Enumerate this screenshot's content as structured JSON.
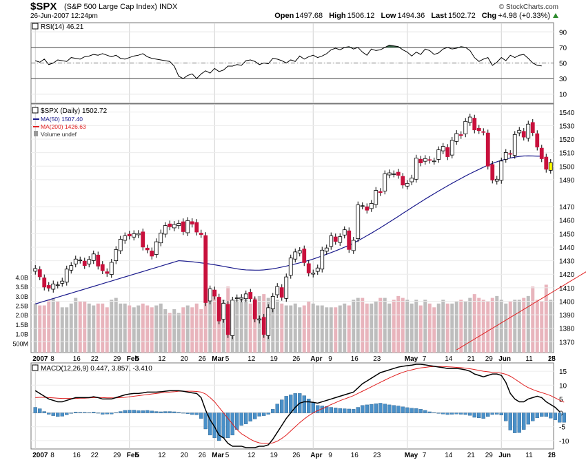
{
  "header": {
    "symbol": "$SPX",
    "name": "(S&P 500 Large Cap Index)",
    "exchange": "INDX",
    "datetime": "26-Jun-2007 12:24pm",
    "logo": "© StockCharts.com",
    "open_label": "Open",
    "open": "1497.68",
    "high_label": "High",
    "high": "1506.12",
    "low_label": "Low",
    "low": "1494.36",
    "last_label": "Last",
    "last": "1502.72",
    "chg_label": "Chg",
    "chg": "+4.98 (+0.33%)",
    "up_color": "#2e8b2e"
  },
  "colors": {
    "up_candle": "#ffffff",
    "down_candle": "#c8103c",
    "last_candle": "#ffff00",
    "ma50": "#1a1a8c",
    "ma200": "#e02020",
    "volume_up": "#bdbdbd",
    "volume_down": "#e8b4bc",
    "macd_line": "#000000",
    "signal_line": "#e02020",
    "histogram": "#4a90c8",
    "rsi_fill": "#2f5f3f"
  },
  "chart_data": [
    {
      "type": "line",
      "panel": "rsi",
      "label": "RSI(14) 46.21",
      "ylim": [
        0,
        100
      ],
      "y_ticks": [
        "90",
        "70",
        "50",
        "30",
        "10"
      ],
      "y_tick_values": [
        90,
        70,
        50,
        30,
        10
      ],
      "overbought": 70,
      "oversold": 30,
      "midline": 50,
      "values": [
        53,
        51,
        55,
        48,
        50,
        54,
        53,
        52,
        57,
        56,
        55,
        58,
        59,
        61,
        60,
        62,
        60,
        58,
        60,
        56,
        55,
        57,
        59,
        60,
        62,
        58,
        56,
        55,
        54,
        53,
        52,
        46,
        33,
        30,
        34,
        36,
        30,
        36,
        40,
        37,
        43,
        39,
        41,
        46,
        46,
        48,
        47,
        53,
        54,
        52,
        48,
        50,
        49,
        56,
        55,
        53,
        50,
        54,
        52,
        59,
        55,
        58,
        60,
        57,
        59,
        62,
        67,
        69,
        67,
        70,
        71,
        68,
        70,
        64,
        60,
        68,
        66,
        67,
        70,
        73,
        72,
        71,
        67,
        64,
        59,
        64,
        61,
        68,
        66,
        61,
        63,
        68,
        70,
        68,
        69,
        71,
        70,
        66,
        57,
        52,
        55,
        57,
        47,
        51,
        57,
        53,
        60,
        57,
        60,
        61,
        56,
        50,
        47,
        46.21
      ]
    },
    {
      "type": "candlestick",
      "panel": "price",
      "label": "$SPX (Daily) 1502.72",
      "legend": [
        "MA(50) 1507.40",
        "MA(200) 1426.63",
        "Volume undef"
      ],
      "ylim": [
        1362,
        1546
      ],
      "y_ticks": [
        "1540",
        "1530",
        "1520",
        "1510",
        "1500",
        "1490",
        "1470",
        "1460",
        "1450",
        "1440",
        "1430",
        "1420",
        "1410",
        "1400",
        "1390",
        "1380",
        "1370"
      ],
      "y_tick_values": [
        1540,
        1530,
        1520,
        1510,
        1500,
        1490,
        1470,
        1460,
        1450,
        1440,
        1430,
        1420,
        1410,
        1400,
        1390,
        1380,
        1370
      ],
      "close": [
        1424.2,
        1418.1,
        1410.5,
        1409.7,
        1412.8,
        1412.1,
        1414.9,
        1423.8,
        1426.4,
        1431.2,
        1430.5,
        1426.4,
        1430.9,
        1435.0,
        1426.0,
        1422.6,
        1420.6,
        1428.8,
        1438.2,
        1445.9,
        1448.4,
        1448.3,
        1450.0,
        1450.1,
        1440.1,
        1438.0,
        1433.4,
        1444.0,
        1450.5,
        1456.0,
        1455.1,
        1456.8,
        1457.6,
        1451.5,
        1459.7,
        1457.1,
        1451.2,
        1449.4,
        1399.0,
        1409.1,
        1403.8,
        1385.4,
        1398.5,
        1375.3,
        1400.8,
        1402.5,
        1402.7,
        1405.4,
        1401.9,
        1386.9,
        1386.9,
        1375.4,
        1395.2,
        1403.6,
        1410.9,
        1402.9,
        1418.0,
        1432.0,
        1436.5,
        1437.5,
        1428.6,
        1420.9,
        1420.9,
        1424.6,
        1437.8,
        1439.4,
        1448.4,
        1444.3,
        1447.8,
        1452.9,
        1438.3,
        1445.1,
        1471.3,
        1470.7,
        1467.4,
        1472.4,
        1482.0,
        1480.4,
        1494.3,
        1495.0,
        1494.3,
        1493.2,
        1486.0,
        1487.2,
        1491.1,
        1505.9,
        1502.4,
        1505.6,
        1504.4,
        1503.8,
        1512.1,
        1514.6,
        1507.0,
        1519.1,
        1524.1,
        1522.7,
        1533.1,
        1536.3,
        1526.8,
        1526.3,
        1525.3,
        1500.0,
        1489.7,
        1490.3,
        1503.8,
        1510.1,
        1508.8,
        1523.4,
        1526.5,
        1521.5,
        1531.1,
        1524.8,
        1514.1,
        1505.5,
        1497.7,
        1502.7
      ],
      "ma50": [
        1398,
        1399,
        1400,
        1401,
        1402,
        1403,
        1404,
        1405,
        1406,
        1407,
        1408,
        1409,
        1410,
        1411,
        1412,
        1413,
        1414,
        1415,
        1416,
        1417,
        1418,
        1419,
        1420,
        1421,
        1422,
        1423,
        1424,
        1425,
        1426,
        1427,
        1428,
        1429,
        1430,
        1429.8,
        1429.5,
        1429.2,
        1428.8,
        1428.4,
        1428,
        1427.5,
        1427,
        1426.4,
        1425.8,
        1425.2,
        1424.6,
        1424,
        1423.5,
        1423.2,
        1423.1,
        1423,
        1423,
        1423.2,
        1423.6,
        1424,
        1424.6,
        1425.3,
        1426,
        1426.8,
        1427.6,
        1428.4,
        1429.3,
        1430.2,
        1431.2,
        1432.4,
        1433.6,
        1434.8,
        1436,
        1437.3,
        1438.6,
        1440,
        1441.5,
        1443,
        1444.8,
        1446.6,
        1448.5,
        1450.4,
        1452.4,
        1454.4,
        1456.5,
        1458.6,
        1460.7,
        1462.8,
        1465,
        1467.1,
        1469.3,
        1471.4,
        1473.5,
        1475.6,
        1477.6,
        1479.6,
        1481.6,
        1483.5,
        1485.4,
        1487.3,
        1489.1,
        1490.9,
        1492.7,
        1494.4,
        1496,
        1497.6,
        1499.2,
        1500.7,
        1502,
        1503.2,
        1504.3,
        1505.2,
        1506,
        1506.7,
        1507.2,
        1507.5,
        1507.6,
        1507.5,
        1507.4,
        1507.4
      ]
    },
    {
      "type": "bar",
      "panel": "volume",
      "y_ticks": [
        "4.0B",
        "3.5B",
        "3.0B",
        "2.5B",
        "2.0B",
        "1.5B",
        "1.0B",
        "500M"
      ],
      "y_tick_values": [
        4.0,
        3.5,
        3.0,
        2.5,
        2.0,
        1.5,
        1.0,
        0.5
      ],
      "ylim": [
        0,
        4.2
      ],
      "values": [
        2.6,
        2.5,
        2.5,
        2.8,
        2.9,
        2.7,
        2.4,
        2.4,
        2.6,
        2.9,
        2.7,
        2.7,
        2.6,
        2.5,
        2.6,
        2.6,
        2.4,
        2.8,
        2.9,
        2.6,
        2.6,
        2.5,
        2.4,
        2.5,
        2.6,
        2.5,
        2.4,
        2.5,
        2.6,
        2.3,
        2.1,
        2.3,
        2.1,
        2.4,
        2.5,
        2.4,
        2.6,
        2.3,
        3.8,
        3.0,
        3.3,
        2.9,
        2.8,
        3.5,
        2.7,
        2.8,
        2.9,
        2.8,
        2.6,
        2.9,
        3.0,
        3.1,
        2.9,
        2.7,
        2.8,
        2.6,
        2.5,
        2.5,
        2.6,
        2.4,
        2.5,
        2.7,
        2.6,
        2.5,
        2.5,
        2.4,
        2.4,
        2.4,
        2.5,
        2.6,
        2.5,
        2.8,
        2.9,
        2.9,
        2.6,
        2.6,
        2.7,
        2.9,
        2.9,
        2.6,
        2.8,
        3.0,
        2.9,
        2.8,
        2.6,
        2.8,
        2.5,
        2.8,
        2.6,
        2.4,
        2.6,
        2.8,
        2.6,
        2.6,
        2.7,
        2.8,
        2.7,
        2.9,
        3.1,
        2.9,
        2.8,
        2.7,
        2.9,
        3.0,
        2.8,
        2.6,
        2.7,
        2.8,
        2.8,
        2.9,
        3.0,
        3.5,
        2.8,
        2.7,
        3.6,
        2.8
      ]
    },
    {
      "type": "line",
      "panel": "price-overlay",
      "label": "MA(200) 1426.63",
      "values_from": 94,
      "values": [
        1364,
        1366,
        1368,
        1370,
        1372,
        1374,
        1376,
        1378,
        1380,
        1382,
        1384,
        1386,
        1388,
        1390,
        1392,
        1394,
        1396,
        1398,
        1400,
        1402,
        1404,
        1406,
        1408,
        1410,
        1412,
        1414,
        1416,
        1418,
        1420,
        1422,
        1424,
        1426,
        1426.63
      ]
    },
    {
      "type": "line",
      "panel": "macd",
      "label": "MACD(12,26,9) 0.447, 3.857, -3.410",
      "ylim": [
        -13,
        18
      ],
      "y_ticks": [
        "15",
        "10",
        "5",
        "0",
        "-5",
        "-10"
      ],
      "y_tick_values": [
        15,
        10,
        5,
        0,
        -5,
        -10
      ],
      "macd": [
        8,
        7,
        6,
        5,
        4.5,
        4,
        4,
        4.5,
        5,
        5.5,
        5.5,
        5.5,
        5.5,
        5.8,
        5.5,
        5,
        5,
        5,
        5.5,
        6,
        6.5,
        6.8,
        7,
        7,
        7.2,
        7.5,
        7.5,
        7.5,
        7.6,
        7.8,
        8,
        8,
        8,
        7.8,
        7.5,
        7.2,
        7,
        5.5,
        1,
        -2.5,
        -5,
        -8,
        -9,
        -11,
        -12,
        -12,
        -12,
        -12.5,
        -12.5,
        -12.5,
        -12,
        -12,
        -11.5,
        -9.5,
        -7,
        -4.5,
        -2,
        0,
        2,
        3.5,
        4,
        4,
        3.8,
        3.5,
        4,
        4.5,
        5,
        5.5,
        6,
        6.5,
        7,
        7.5,
        9,
        10.5,
        11.5,
        12.5,
        13.5,
        14.5,
        15,
        15.5,
        16,
        16.5,
        16.8,
        17,
        17.2,
        17.5,
        17.5,
        17.3,
        17,
        16.8,
        16.5,
        16.3,
        16,
        16,
        16,
        15.8,
        15.5,
        15,
        14,
        13.5,
        13,
        13.5,
        14,
        14,
        13.5,
        11,
        7,
        5,
        4,
        4,
        5,
        5.5,
        6,
        5.5,
        4,
        3,
        2,
        0.447
      ],
      "signal": [
        5.5,
        5.6,
        5.6,
        5.5,
        5.4,
        5.3,
        5.2,
        5.2,
        5.2,
        5.2,
        5.3,
        5.3,
        5.4,
        5.5,
        5.5,
        5.5,
        5.4,
        5.4,
        5.4,
        5.5,
        5.6,
        5.8,
        6,
        6.2,
        6.4,
        6.6,
        6.8,
        7,
        7.2,
        7.3,
        7.5,
        7.6,
        7.8,
        7.8,
        7.8,
        7.8,
        7.7,
        7.5,
        6.8,
        5.5,
        4,
        2,
        0,
        -2,
        -4,
        -6,
        -7.5,
        -8.5,
        -9.5,
        -10.3,
        -10.8,
        -11,
        -11,
        -10.8,
        -10.2,
        -9.2,
        -8,
        -6.5,
        -5,
        -3.5,
        -2.2,
        -1,
        0,
        0.8,
        1.5,
        2.2,
        3,
        3.7,
        4.4,
        5,
        5.6,
        6.2,
        7,
        7.8,
        8.6,
        9.4,
        10.2,
        11,
        11.8,
        12.6,
        13.3,
        14,
        14.6,
        15.1,
        15.5,
        15.9,
        16.2,
        16.4,
        16.6,
        16.7,
        16.7,
        16.7,
        16.6,
        16.5,
        16.4,
        16.3,
        16.1,
        15.9,
        15.6,
        15.3,
        15,
        14.8,
        14.6,
        14.5,
        14.3,
        13.9,
        13.2,
        12.2,
        11.1,
        10,
        9.1,
        8.4,
        7.8,
        7.3,
        6.8,
        6.2,
        5.4,
        4.6,
        3.857
      ],
      "histogram": [
        2,
        1.5,
        0.5,
        -0.5,
        -1,
        -1.3,
        -1.2,
        -0.7,
        -0.2,
        0.3,
        0.2,
        0.2,
        0.1,
        0.3,
        0,
        -0.5,
        -0.4,
        -0.4,
        0.1,
        0.5,
        0.9,
        1,
        1,
        0.8,
        0.8,
        0.9,
        0.7,
        0.5,
        0.4,
        0.5,
        0.5,
        0.4,
        0.2,
        0,
        -0.3,
        -0.6,
        -0.7,
        -2,
        -5.8,
        -8,
        -9,
        -10,
        -9,
        -9,
        -8,
        -6,
        -4.5,
        -4,
        -3,
        -2.2,
        -1.2,
        -1,
        -0.5,
        1.3,
        3.2,
        4.7,
        6,
        6.5,
        7,
        7,
        6.2,
        5,
        3.8,
        2.7,
        2.5,
        2.3,
        2,
        1.8,
        1.6,
        1.5,
        1.4,
        1.3,
        2,
        2.7,
        2.9,
        3.1,
        3.3,
        3.5,
        3.2,
        2.9,
        2.7,
        2.5,
        2.2,
        1.9,
        1.7,
        1.6,
        1.3,
        0.9,
        0.4,
        0.1,
        -0.2,
        -0.4,
        -0.6,
        -0.5,
        -0.4,
        -0.5,
        -0.6,
        -0.9,
        -1.6,
        -1.8,
        -2,
        -1.3,
        -0.6,
        -0.5,
        -0.8,
        -2.9,
        -6.2,
        -7.2,
        -7.1,
        -6,
        -4.1,
        -2.9,
        -1.8,
        -1.3,
        -1.3,
        -1.9,
        -2.5,
        -3.4,
        -3.41
      ]
    }
  ],
  "x_axis": {
    "labels": [
      "2007",
      "8",
      "16",
      "22",
      "29",
      "Feb",
      "5",
      "12",
      "20",
      "26",
      "Mar",
      "5",
      "12",
      "19",
      "26",
      "Apr",
      "9",
      "16",
      "23",
      "May",
      "7",
      "14",
      "21",
      "29",
      "Jun",
      "11",
      "18",
      "25"
    ],
    "bold": [
      "2007",
      "Feb",
      "Mar",
      "Apr",
      "May",
      "Jun"
    ]
  }
}
